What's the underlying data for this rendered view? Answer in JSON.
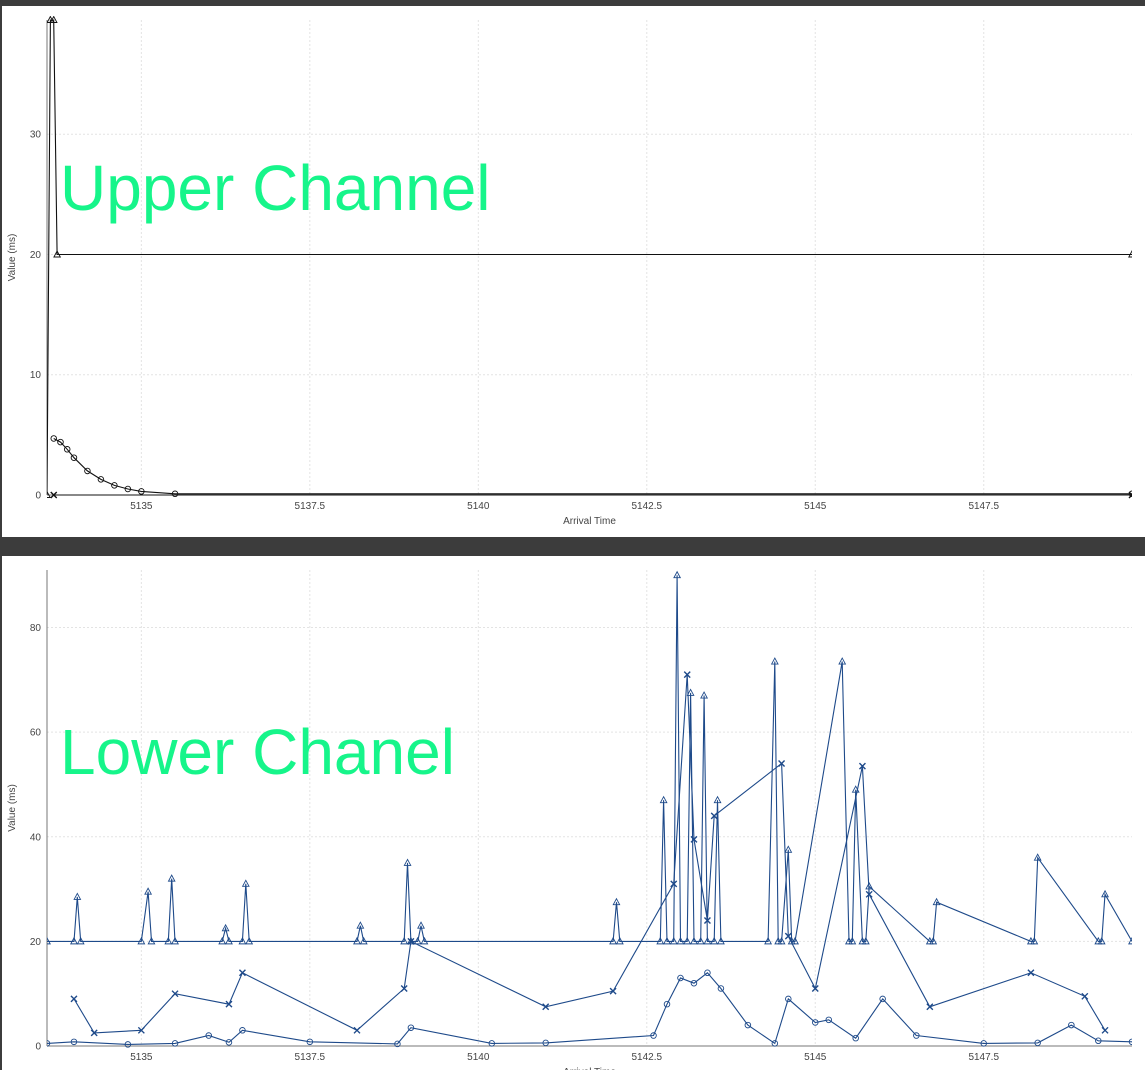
{
  "chart_data": [
    {
      "type": "line",
      "overlay_text": "Upper Channel",
      "xlabel": "Arrival Time",
      "ylabel": "Value (ms)",
      "xlim": [
        5133.6,
        5149.7
      ],
      "ylim": [
        0,
        39.5
      ],
      "xticks": [
        5135,
        5137.5,
        5140,
        5142.5,
        5145,
        5147.5
      ],
      "xtick_labels": [
        "5135",
        "5137.5",
        "5140",
        "5142.5",
        "5145",
        "5147.5"
      ],
      "yticks": [
        0,
        10,
        20,
        30
      ],
      "grid": true,
      "series": [
        {
          "marker": "triangle",
          "color": "#111111",
          "x": [
            5133.6,
            5133.65,
            5133.7,
            5133.75,
            5149.7
          ],
          "y": [
            0,
            39.5,
            39.5,
            20,
            20
          ]
        },
        {
          "marker": "circle",
          "color": "#111111",
          "x": [
            5133.7,
            5133.8,
            5133.9,
            5134.0,
            5134.2,
            5134.4,
            5134.6,
            5134.8,
            5135.0,
            5135.5,
            5149.7
          ],
          "y": [
            4.7,
            4.4,
            3.8,
            3.1,
            2.0,
            1.3,
            0.8,
            0.5,
            0.3,
            0.1,
            0.1
          ]
        },
        {
          "marker": "cross",
          "color": "#111111",
          "x": [
            5133.7,
            5149.7
          ],
          "y": [
            0,
            0
          ]
        }
      ]
    },
    {
      "type": "line",
      "overlay_text": "Lower Chanel",
      "xlabel": "Arrival Time",
      "ylabel": "Value (ms)",
      "xlim": [
        5133.6,
        5149.7
      ],
      "ylim": [
        0,
        91
      ],
      "xticks": [
        5135,
        5137.5,
        5140,
        5142.5,
        5145,
        5147.5
      ],
      "xtick_labels": [
        "5135",
        "5137.5",
        "5140",
        "5142.5",
        "5145",
        "5147.5"
      ],
      "yticks": [
        0,
        20,
        40,
        60,
        80
      ],
      "grid": true,
      "series": [
        {
          "marker": "triangle",
          "color": "#1e4a8a",
          "x": [
            5133.6,
            5134.0,
            5134.05,
            5134.1,
            5135.0,
            5135.1,
            5135.15,
            5135.4,
            5135.45,
            5135.5,
            5136.2,
            5136.25,
            5136.3,
            5136.5,
            5136.55,
            5136.6,
            5138.2,
            5138.25,
            5138.3,
            5138.9,
            5138.95,
            5139.0,
            5139.1,
            5139.15,
            5139.2,
            5142.0,
            5142.05,
            5142.1,
            5142.7,
            5142.75,
            5142.8,
            5142.9,
            5142.95,
            5143.0,
            5143.1,
            5143.15,
            5143.2,
            5143.3,
            5143.35,
            5143.4,
            5143.5,
            5143.55,
            5143.6,
            5144.3,
            5144.4,
            5144.45,
            5144.5,
            5144.6,
            5144.65,
            5144.7,
            5145.4,
            5145.5,
            5145.55,
            5145.6,
            5145.7,
            5145.75,
            5145.8,
            5146.7,
            5146.75,
            5146.8,
            5148.2,
            5148.25,
            5148.3,
            5149.2,
            5149.25,
            5149.3,
            5149.7
          ],
          "y": [
            20,
            20,
            28.5,
            20,
            20,
            29.5,
            20,
            20,
            32,
            20,
            20,
            22.5,
            20,
            20,
            31,
            20,
            20,
            23,
            20,
            20,
            35,
            20,
            20,
            23,
            20,
            20,
            27.5,
            20,
            20,
            47,
            20,
            20,
            90,
            20,
            20,
            67.5,
            20,
            20,
            67,
            20,
            20,
            47,
            20,
            20,
            73.5,
            20,
            20,
            37.5,
            20,
            20,
            73.5,
            20,
            20,
            49,
            20,
            20,
            30.5,
            20,
            20,
            27.5,
            20,
            20,
            36,
            20,
            20,
            29,
            20
          ]
        },
        {
          "marker": "circle",
          "color": "#1e4a8a",
          "x": [
            5133.6,
            5134.0,
            5134.8,
            5135.5,
            5136.0,
            5136.3,
            5136.5,
            5137.5,
            5138.8,
            5139.0,
            5140.2,
            5141.0,
            5142.6,
            5142.8,
            5143.0,
            5143.2,
            5143.4,
            5143.6,
            5144.0,
            5144.4,
            5144.6,
            5145.0,
            5145.2,
            5145.6,
            5146.0,
            5146.5,
            5147.5,
            5148.3,
            5148.8,
            5149.2,
            5149.7
          ],
          "y": [
            0.5,
            0.8,
            0.3,
            0.5,
            2.0,
            0.7,
            3.0,
            0.8,
            0.4,
            3.5,
            0.5,
            0.6,
            2.0,
            8.0,
            13.0,
            12.0,
            14.0,
            11.0,
            4.0,
            0.5,
            9.0,
            4.5,
            5.0,
            1.5,
            9.0,
            2.0,
            0.5,
            0.6,
            4.0,
            1.0,
            0.8
          ]
        },
        {
          "marker": "cross",
          "color": "#1e4a8a",
          "x": [
            5134.0,
            5134.3,
            5135.0,
            5135.5,
            5136.3,
            5136.5,
            5138.2,
            5138.9,
            5139.0,
            5141.0,
            5142.0,
            5142.9,
            5143.1,
            5143.2,
            5143.4,
            5143.5,
            5144.5,
            5144.6,
            5145.0,
            5145.7,
            5145.8,
            5146.7,
            5148.2,
            5149.0,
            5149.3
          ],
          "y": [
            9.0,
            2.5,
            3.0,
            10.0,
            8.0,
            14.0,
            3.0,
            11.0,
            20.0,
            7.5,
            10.5,
            31.0,
            71.0,
            39.5,
            24.0,
            44.0,
            54.0,
            21.0,
            11.0,
            53.5,
            29.0,
            7.5,
            14.0,
            9.5,
            3.0
          ]
        }
      ]
    }
  ]
}
